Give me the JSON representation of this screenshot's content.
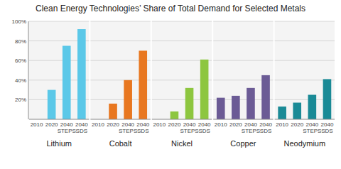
{
  "chart_data": {
    "type": "bar",
    "title": "Clean Energy Technologies’ Share of Total Demand for Selected Metals",
    "categories": [
      "2010",
      "2020",
      "2040\nSTEPS",
      "2040\nSDS"
    ],
    "series": [
      {
        "name": "Lithium",
        "color": "#5BC8E8",
        "values": [
          0,
          30,
          75,
          92
        ]
      },
      {
        "name": "Cobalt",
        "color": "#E87720",
        "values": [
          0,
          16,
          40,
          70
        ]
      },
      {
        "name": "Nickel",
        "color": "#8DC63F",
        "values": [
          0,
          8,
          32,
          61
        ]
      },
      {
        "name": "Copper",
        "color": "#6B5B95",
        "values": [
          22,
          24,
          32,
          45
        ]
      },
      {
        "name": "Neodymium",
        "color": "#1A8A96",
        "values": [
          13,
          17,
          25,
          41
        ]
      }
    ],
    "ylim": [
      0,
      100
    ],
    "yticks": [
      {
        "value": 20,
        "label": "20%"
      },
      {
        "value": 40,
        "label": "40%"
      },
      {
        "value": 60,
        "label": "60%"
      },
      {
        "value": 80,
        "label": "80%"
      },
      {
        "value": 100,
        "label": "100%"
      }
    ],
    "grid": true
  }
}
